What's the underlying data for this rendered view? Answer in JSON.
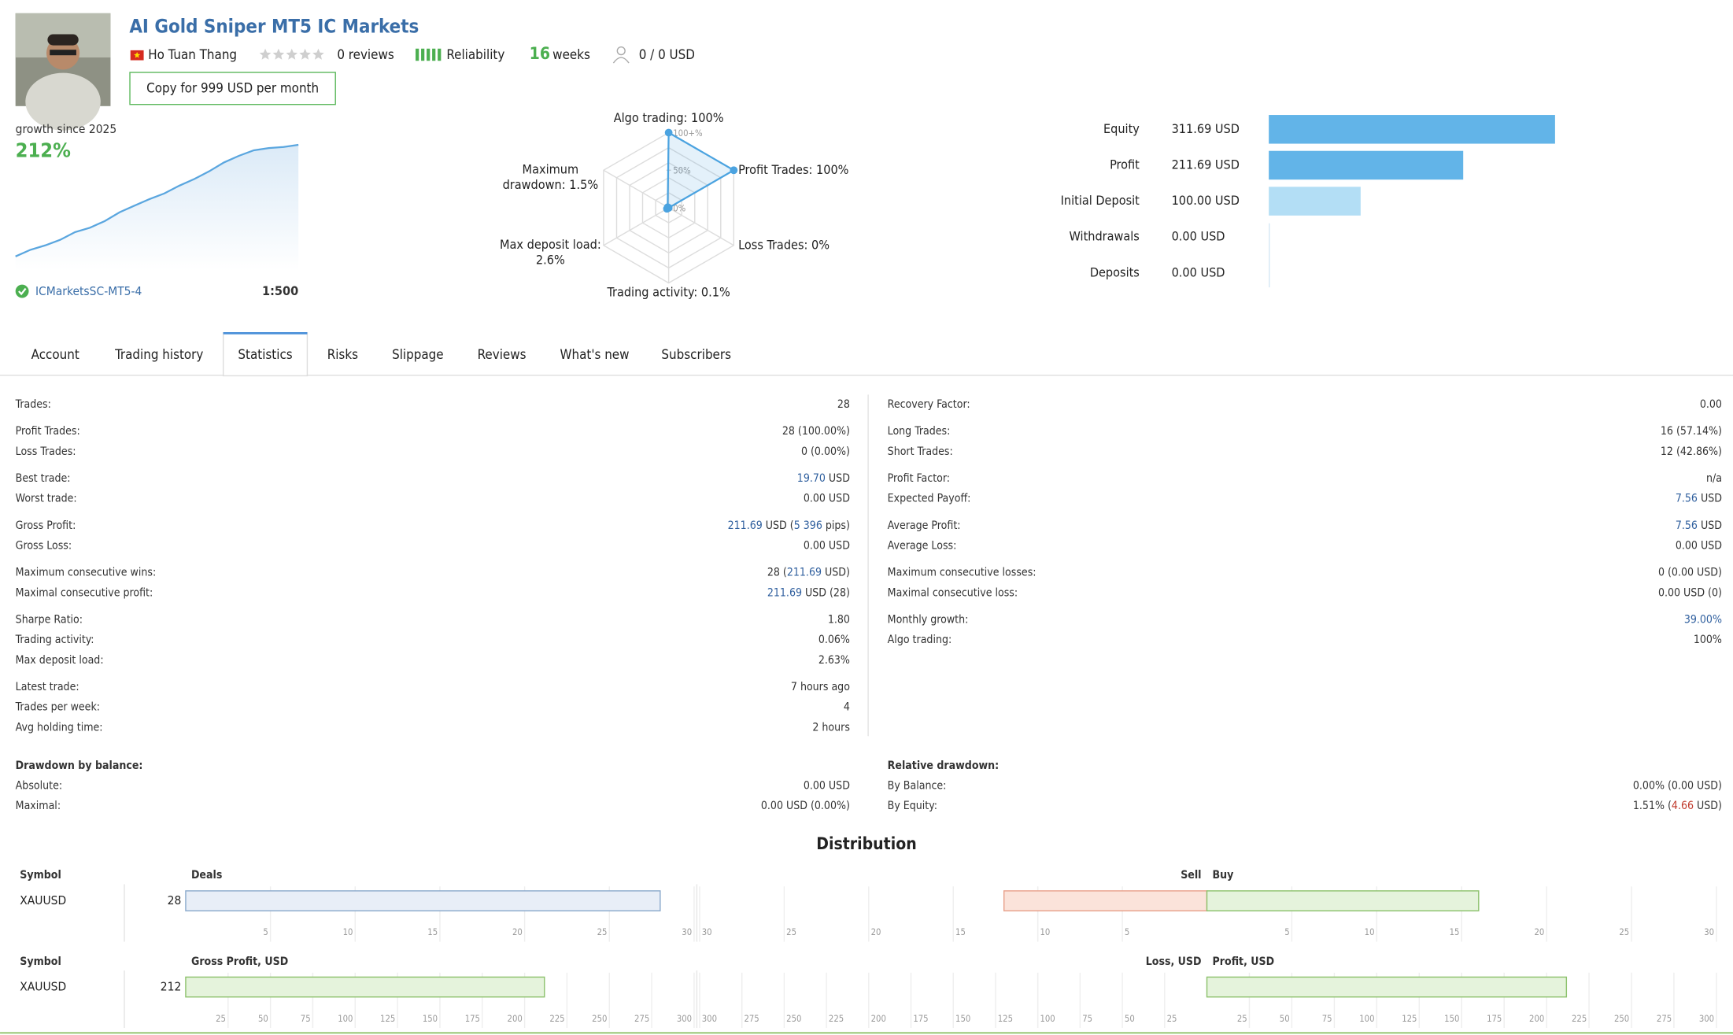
{
  "header": {
    "title": "AI Gold Sniper MT5 IC Markets",
    "author": "Ho Tuan Thang",
    "reviews": "0 reviews",
    "reliability": "Reliability",
    "weeks_count": "16",
    "weeks_unit": "weeks",
    "subscribers": "0 / 0 USD",
    "copy_button": "Copy for 999 USD per month"
  },
  "growth": {
    "type": "line",
    "label": "growth since 2025",
    "value": "212%",
    "values": [
      0,
      12.6,
      21,
      31.5,
      46.2,
      54.5,
      67.2,
      84,
      96.6,
      109,
      119.6,
      134.3,
      146.9,
      161.6,
      178.4,
      191,
      201.5,
      205.7,
      207.8,
      212
    ],
    "color": "#5aa6df",
    "broker": "ICMarketsSC-MT5-4",
    "leverage": "1:500"
  },
  "radar": {
    "type": "radar",
    "rlim": [
      0,
      100
    ],
    "rticks": [
      {
        "value": 0,
        "label": "0%"
      },
      {
        "value": 50,
        "label": "50%"
      },
      {
        "value": 100,
        "label": "100+%"
      }
    ],
    "color": "#4ba3e0",
    "axes": [
      {
        "label": "Algo trading: 100%",
        "value": 100
      },
      {
        "label": "Profit Trades: 100%",
        "value": 100
      },
      {
        "label": "Loss Trades: 0%",
        "value": 0
      },
      {
        "label": "Trading activity: 0.1%",
        "value": 0.1
      },
      {
        "label": "Max deposit load: 2.6%",
        "value": 2.6
      },
      {
        "label": "Maximum drawdown: 1.5%",
        "value": 1.5
      }
    ]
  },
  "balance": {
    "type": "bar",
    "categories": [
      "Equity",
      "Profit",
      "Initial Deposit",
      "Withdrawals",
      "Deposits"
    ],
    "values": [
      311.69,
      211.69,
      100,
      0,
      0
    ],
    "value_labels": [
      "311.69 USD",
      "211.69 USD",
      "100.00 USD",
      "0.00 USD",
      "0.00 USD"
    ],
    "colors": [
      "#62b4e8",
      "#62b4e8",
      "#b3def5",
      "#b3def5",
      "#b3def5"
    ]
  },
  "tabs": {
    "items": [
      "Account",
      "Trading history",
      "Statistics",
      "Risks",
      "Slippage",
      "Reviews",
      "What's new",
      "Subscribers"
    ],
    "active": 2
  },
  "statistics": {
    "left": [
      [
        {
          "label": "Trades:",
          "value": [
            "28"
          ]
        }
      ],
      [
        {
          "label": "Profit Trades:",
          "value": [
            "28 (100.00%)"
          ]
        },
        {
          "label": "Loss Trades:",
          "value": [
            "0 (0.00%)"
          ]
        }
      ],
      [
        {
          "label": "Best trade:",
          "value": [
            {
              "text": "19.70",
              "style": "link"
            },
            " USD"
          ]
        },
        {
          "label": "Worst trade:",
          "value": [
            "0.00 USD"
          ]
        }
      ],
      [
        {
          "label": "Gross Profit:",
          "value": [
            {
              "text": "211.69",
              "style": "link"
            },
            " USD (",
            {
              "text": "5 396",
              "style": "link"
            },
            " pips)"
          ]
        },
        {
          "label": "Gross Loss:",
          "value": [
            "0.00 USD"
          ]
        }
      ],
      [
        {
          "label": "Maximum consecutive wins:",
          "value": [
            "28 (",
            {
              "text": "211.69",
              "style": "link"
            },
            " USD)"
          ]
        },
        {
          "label": "Maximal consecutive profit:",
          "value": [
            {
              "text": "211.69",
              "style": "link"
            },
            " USD (28)"
          ]
        }
      ],
      [
        {
          "label": "Sharpe Ratio:",
          "value": [
            "1.80"
          ]
        },
        {
          "label": "Trading activity:",
          "value": [
            "0.06%"
          ]
        },
        {
          "label": "Max deposit load:",
          "value": [
            "2.63%"
          ]
        }
      ],
      [
        {
          "label": "Latest trade:",
          "value": [
            "7 hours ago"
          ]
        },
        {
          "label": "Trades per week:",
          "value": [
            "4"
          ]
        },
        {
          "label": "Avg holding time:",
          "value": [
            "2 hours"
          ]
        }
      ]
    ],
    "right": [
      [
        {
          "label": "Recovery Factor:",
          "value": [
            "0.00"
          ]
        }
      ],
      [
        {
          "label": "Long Trades:",
          "value": [
            "16 (57.14%)"
          ]
        },
        {
          "label": "Short Trades:",
          "value": [
            "12 (42.86%)"
          ]
        }
      ],
      [
        {
          "label": "Profit Factor:",
          "value": [
            "n/a"
          ]
        },
        {
          "label": "Expected Payoff:",
          "value": [
            {
              "text": "7.56",
              "style": "link"
            },
            " USD"
          ]
        }
      ],
      [
        {
          "label": "Average Profit:",
          "value": [
            {
              "text": "7.56",
              "style": "link"
            },
            " USD"
          ]
        },
        {
          "label": "Average Loss:",
          "value": [
            "0.00 USD"
          ]
        }
      ],
      [
        {
          "label": "Maximum consecutive losses:",
          "value": [
            "0 (0.00 USD)"
          ]
        },
        {
          "label": "Maximal consecutive loss:",
          "value": [
            "0.00 USD (0)"
          ]
        }
      ],
      [
        {
          "label": "Monthly growth:",
          "value": [
            {
              "text": "39.00%",
              "style": "link"
            }
          ]
        },
        {
          "label": "Algo trading:",
          "value": [
            "100%"
          ]
        }
      ]
    ]
  },
  "drawdown": {
    "left": {
      "title": "Drawdown by balance:",
      "rows": [
        {
          "label": "Absolute:",
          "value": [
            "0.00 USD"
          ]
        },
        {
          "label": "Maximal:",
          "value": [
            "0.00 USD (0.00%)"
          ]
        }
      ]
    },
    "right": {
      "title": "Relative drawdown:",
      "rows": [
        {
          "label": "By Balance:",
          "value": [
            "0.00% (0.00 USD)"
          ]
        },
        {
          "label": "By Equity:",
          "value": [
            "1.51% (",
            {
              "text": "4.66",
              "style": "red"
            },
            " USD)"
          ]
        }
      ]
    }
  },
  "distribution": {
    "title": "Distribution",
    "charts": [
      {
        "type": "bar",
        "symbol_title": "Symbol",
        "left_title": "Deals",
        "neg_title": "Sell",
        "pos_title": "Buy",
        "categories": [
          "XAUUSD"
        ],
        "values": [
          28
        ],
        "neg_values": [
          12
        ],
        "pos_values": [
          16
        ],
        "xlim": [
          0,
          30
        ],
        "xticks": [
          5,
          10,
          15,
          20,
          25,
          30
        ],
        "color": "#e8eef7",
        "neg_color": "#fbe3da",
        "pos_color": "#e5f3dc"
      },
      {
        "type": "bar",
        "symbol_title": "Symbol",
        "left_title": "Gross Profit, USD",
        "neg_title": "Loss, USD",
        "pos_title": "Profit, USD",
        "categories": [
          "XAUUSD"
        ],
        "values": [
          211.69
        ],
        "value_labels": [
          "212"
        ],
        "neg_values": [
          0
        ],
        "pos_values": [
          211.69
        ],
        "xlim": [
          0,
          300
        ],
        "xticks": [
          25,
          50,
          75,
          100,
          125,
          150,
          175,
          200,
          225,
          250,
          275,
          300
        ],
        "color": "#e5f3dc",
        "neg_color": "#fbe3da",
        "pos_color": "#e5f3dc"
      }
    ]
  }
}
